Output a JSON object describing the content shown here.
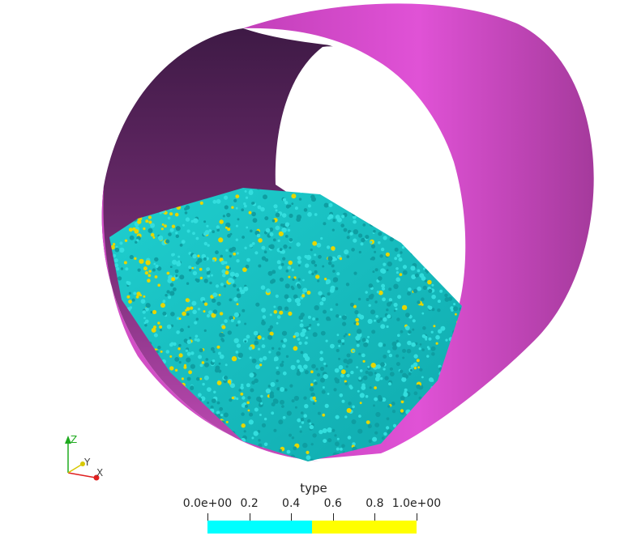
{
  "scene": {
    "cylinder_outer_color": "#d94fd0",
    "cylinder_inner_dark": "#3e1a45",
    "cylinder_inner_light": "#b54aa8",
    "particle_color_type0": "#19c9c9",
    "particle_color_type1": "#e6d600"
  },
  "axes": {
    "z_label": "Z",
    "y_label": "Y",
    "x_label": "X",
    "z_color": "#1faa1f",
    "y_color": "#d8c800",
    "x_color": "#e02020"
  },
  "colorbar": {
    "title": "type",
    "ticks": [
      {
        "label": "0.0e+00",
        "value": 0.0
      },
      {
        "label": "0.2",
        "value": 0.2
      },
      {
        "label": "0.4",
        "value": 0.4
      },
      {
        "label": "0.6",
        "value": 0.6
      },
      {
        "label": "0.8",
        "value": 0.8
      },
      {
        "label": "1.0e+00",
        "value": 1.0
      }
    ],
    "segments": [
      "#00ffff",
      "#ffff00"
    ]
  }
}
